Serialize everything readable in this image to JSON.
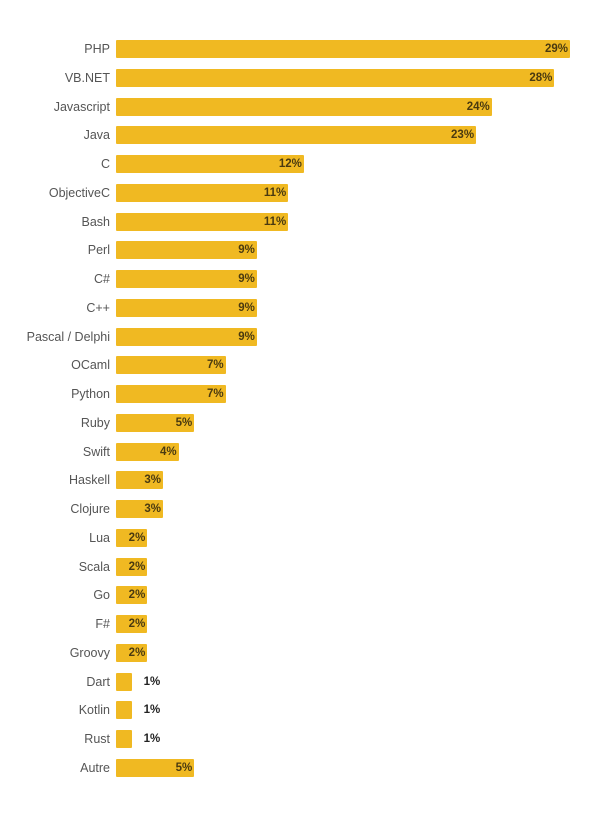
{
  "chart_data": {
    "type": "bar",
    "orientation": "horizontal",
    "title": "",
    "xlabel": "",
    "ylabel": "",
    "unit": "%",
    "bar_color": "#F0B922",
    "categories": [
      "PHP",
      "VB.NET",
      "Javascript",
      "Java",
      "C",
      "ObjectiveC",
      "Bash",
      "Perl",
      "C#",
      "C++",
      "Pascal / Delphi",
      "OCaml",
      "Python",
      "Ruby",
      "Swift",
      "Haskell",
      "Clojure",
      "Lua",
      "Scala",
      "Go",
      "F#",
      "Groovy",
      "Dart",
      "Kotlin",
      "Rust",
      "Autre"
    ],
    "values": [
      29,
      28,
      24,
      23,
      12,
      11,
      11,
      9,
      9,
      9,
      9,
      7,
      7,
      5,
      4,
      3,
      3,
      2,
      2,
      2,
      2,
      2,
      1,
      1,
      1,
      5
    ],
    "labels": [
      "29%",
      "28%",
      "24%",
      "23%",
      "12%",
      "11%",
      "11%",
      "9%",
      "9%",
      "9%",
      "9%",
      "7%",
      "7%",
      "5%",
      "4%",
      "3%",
      "3%",
      "2%",
      "2%",
      "2%",
      "2%",
      "2%",
      "1%",
      "1%",
      "1%",
      "5%"
    ],
    "xlim": [
      0,
      29
    ],
    "grid": false,
    "legend": "none"
  }
}
